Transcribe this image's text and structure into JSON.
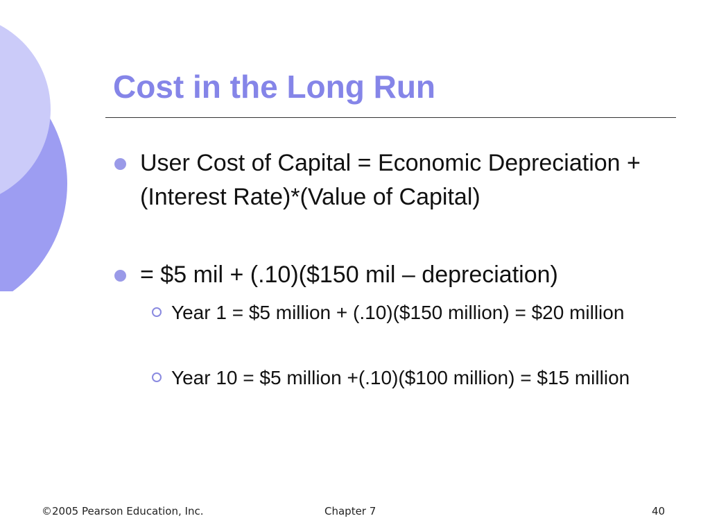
{
  "title": "Cost in the Long Run",
  "bullets": [
    {
      "text": "User Cost of Capital = Economic Depreciation + (Interest Rate)*(Value of Capital)"
    },
    {
      "text": "= $5 mil + (.10)($150 mil – depreciation)",
      "subbullets": [
        "Year 1 = $5 million + (.10)($150 million) = $20 million",
        "Year 10 = $5 million +(.10)($100 million) = $15 million"
      ]
    }
  ],
  "footer": {
    "left": "©2005 Pearson Education, Inc.",
    "center": "Chapter 7",
    "right": "40"
  }
}
